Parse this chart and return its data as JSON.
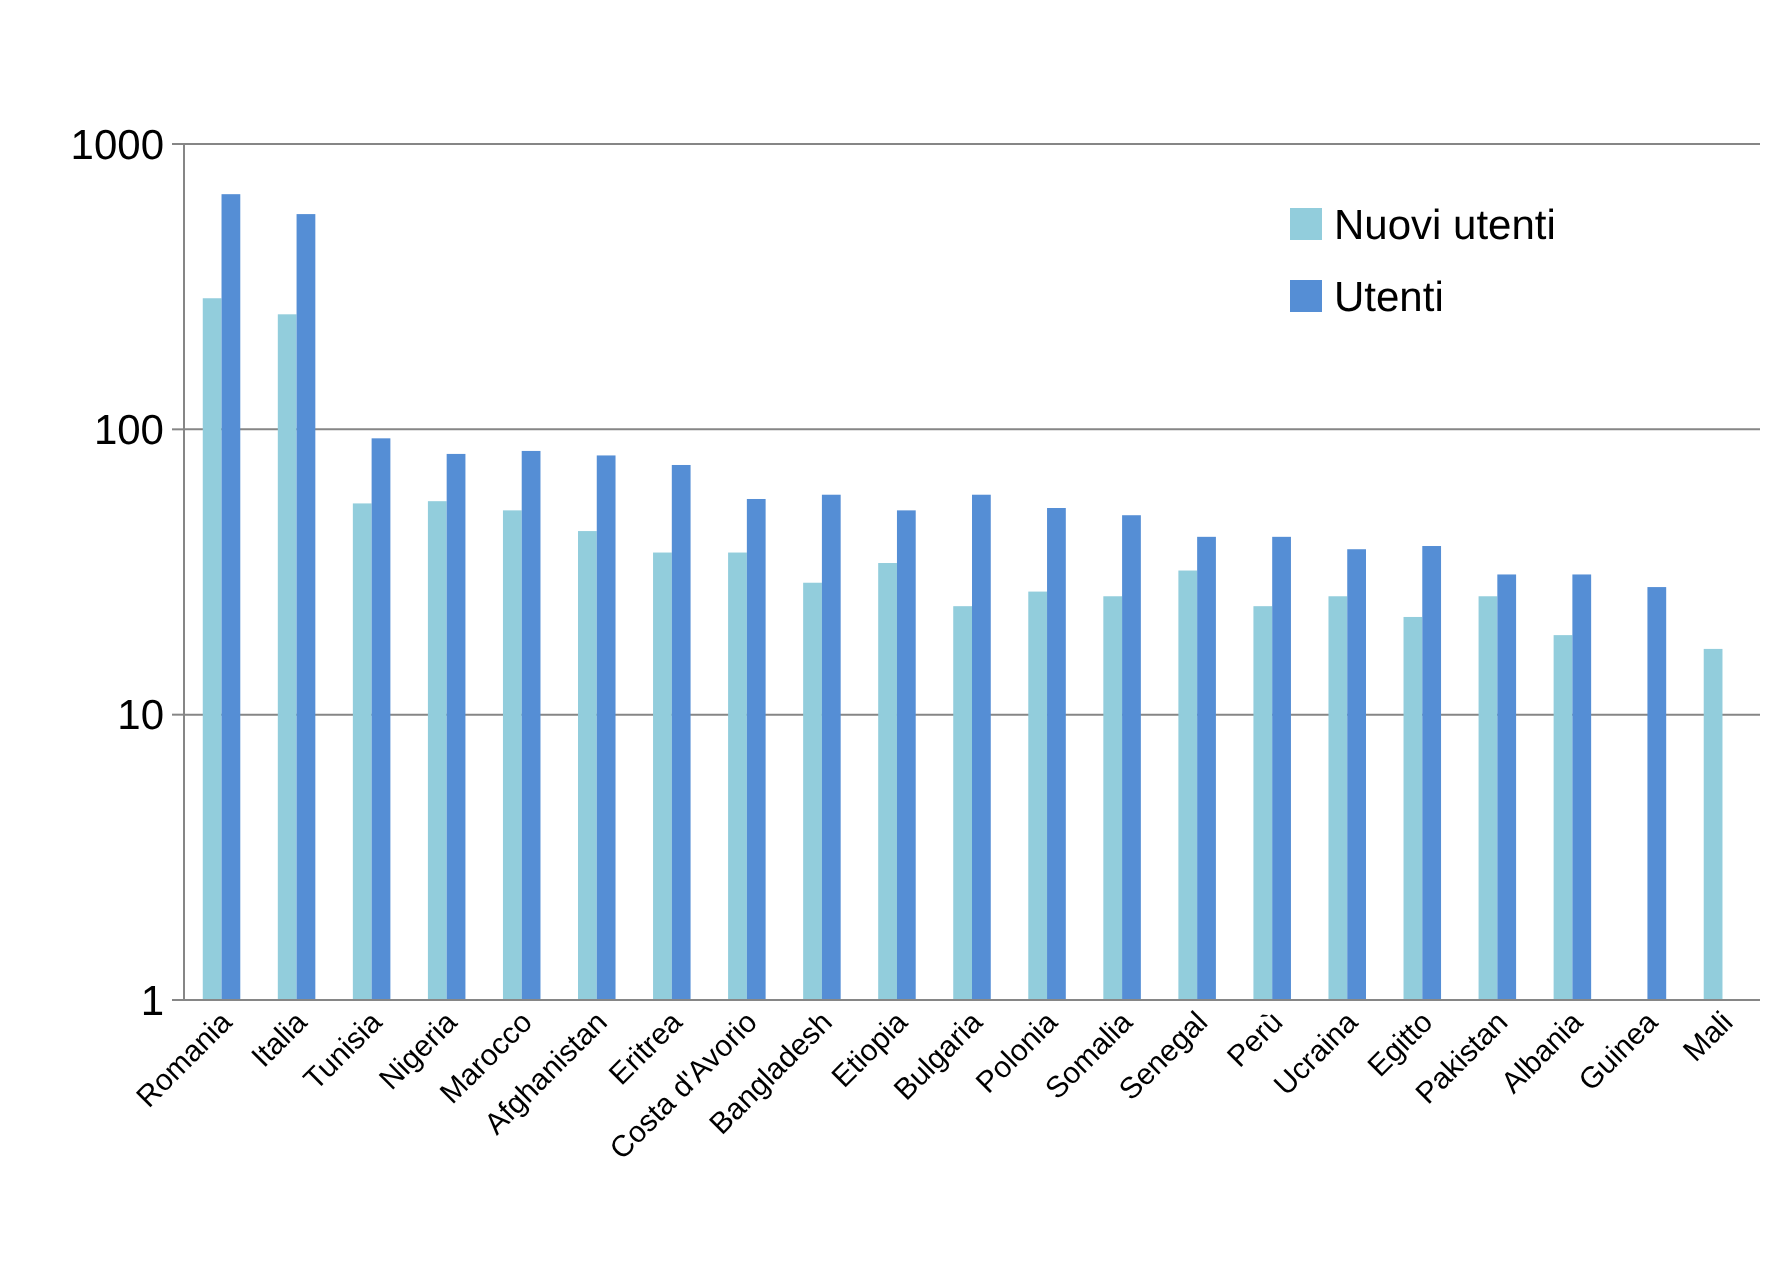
{
  "chart_data": {
    "type": "bar",
    "categories": [
      "Romania",
      "Italia",
      "Tunisia",
      "Nigeria",
      "Marocco",
      "Afghanistan",
      "Eritrea",
      "Costa d'Avorio",
      "Bangladesh",
      "Etiopia",
      "Bulgaria",
      "Polonia",
      "Somalia",
      "Senegal",
      "Perù",
      "Ucraina",
      "Egitto",
      "Pakistan",
      "Albania",
      "Guinea",
      "Mali"
    ],
    "series": [
      {
        "name": "Nuovi utenti",
        "color": "#92cddc",
        "values": [
          288,
          253,
          55,
          56,
          52,
          44,
          37,
          37,
          29,
          34,
          24,
          27,
          26,
          32,
          24,
          26,
          22,
          26,
          19,
          null,
          17
        ]
      },
      {
        "name": "Utenti",
        "color": "#558ed5",
        "values": [
          667,
          568,
          93,
          82,
          84,
          81,
          75,
          57,
          59,
          52,
          59,
          53,
          50,
          42,
          42,
          38,
          39,
          31,
          31,
          28,
          null
        ]
      }
    ],
    "log": "y",
    "ylim": [
      1,
      1000
    ],
    "yticks": [
      1,
      10,
      100,
      1000
    ],
    "grid": "y",
    "legend": "top right"
  }
}
